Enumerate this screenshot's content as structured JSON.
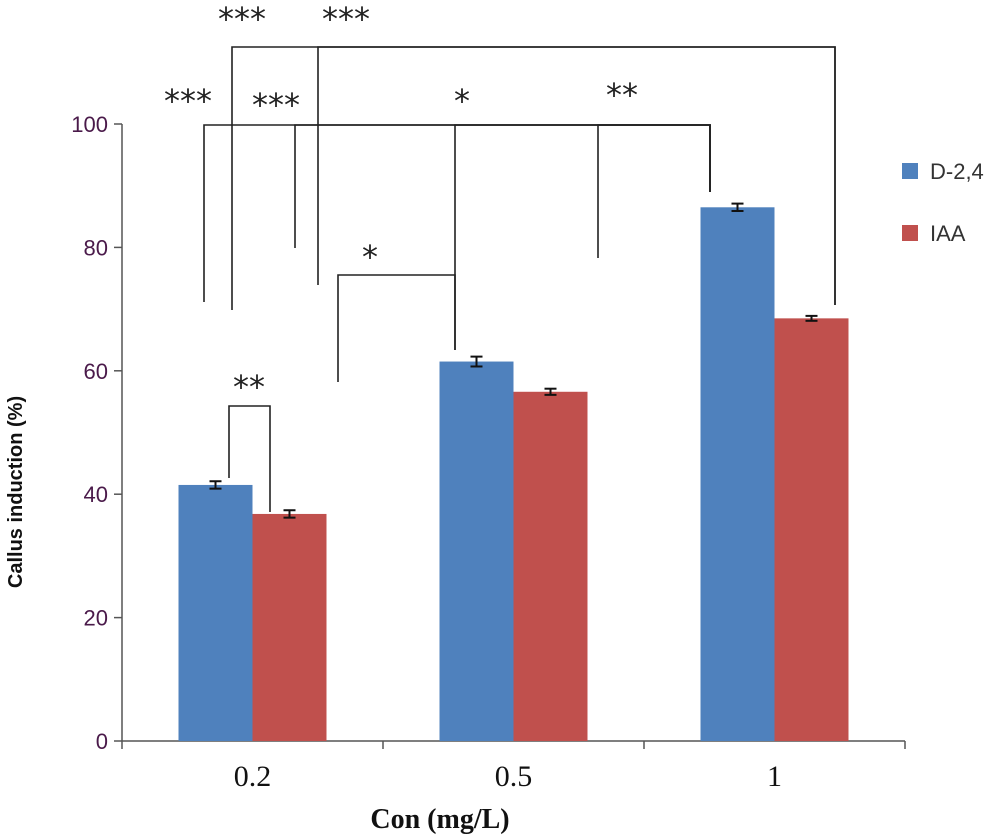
{
  "chart_data": {
    "type": "bar",
    "title": "",
    "xlabel": "Con  (mg/L)",
    "ylabel": "Callus induction (%)",
    "ylim": [
      0,
      100
    ],
    "yticks": [
      "0",
      "20",
      "40",
      "60",
      "80",
      "100"
    ],
    "categories": [
      "0.2",
      "0.5",
      "1"
    ],
    "series": [
      {
        "name": "D-2,4",
        "values": [
          41.5,
          61.5,
          86.5
        ],
        "errors": [
          0.6,
          0.8,
          0.6
        ],
        "color": "#4f81bd"
      },
      {
        "name": "IAA",
        "values": [
          36.8,
          56.6,
          68.5
        ],
        "errors": [
          0.6,
          0.5,
          0.4
        ],
        "color": "#c0504d"
      }
    ],
    "legend": "right",
    "grid": false,
    "significance": [
      {
        "label": "**",
        "between": "D-2,4 0.2 vs IAA 0.2"
      },
      {
        "label": "*",
        "between": "IAA 0.2 vs D-2,4 0.5"
      },
      {
        "label": "***",
        "between": "D-2,4 0.2 vs D-2,4 1"
      },
      {
        "label": "***",
        "between": "IAA 0.2 vs D-2,4 1"
      },
      {
        "label": "*",
        "between": "D-2,4 0.5 vs D-2,4 1"
      },
      {
        "label": "**",
        "between": "IAA 0.5 vs D-2,4 1"
      },
      {
        "label": "***",
        "between": "D-2,4 0.2 vs IAA 1"
      },
      {
        "label": "***",
        "between": "IAA 0.2 vs IAA 1"
      }
    ]
  }
}
